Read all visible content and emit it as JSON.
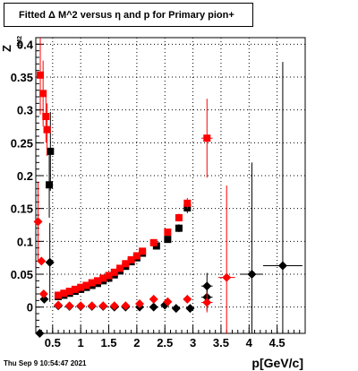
{
  "title": "Fitted Δ M^2 versus η and p for Primary pion+",
  "timestamp": "Thu Sep  9 10:54:47 2021",
  "chart_data": {
    "type": "scatter",
    "title": "Fitted Δ M^2 versus η and p for Primary pion+",
    "xlabel": "p[GeV/c]",
    "ylabel": "Z",
    "ylabel_sub": "dM2",
    "xlim": [
      0.2,
      5.0
    ],
    "ylim": [
      -0.04,
      0.41
    ],
    "grid": true,
    "x_ticks": [
      0.5,
      1,
      1.5,
      2,
      2.5,
      3,
      3.5,
      4,
      4.5
    ],
    "x_tick_labels": [
      "0.5",
      "1",
      "1.5",
      "2",
      "2.5",
      "3",
      "3.5",
      "4",
      "4.5"
    ],
    "y_ticks": [
      0,
      0.05,
      0.1,
      0.15,
      0.2,
      0.25,
      0.3,
      0.35,
      0.4
    ],
    "y_tick_labels": [
      "0",
      "0.05",
      "0.1",
      "0.15",
      "0.2",
      "0.25",
      "0.3",
      "0.35",
      "0.4"
    ],
    "colors": {
      "black": "#000000",
      "red": "#ff0000"
    },
    "series": [
      {
        "marker": "square",
        "color": "#000000",
        "points": [
          {
            "x": 0.46,
            "y": 0.237,
            "ey": 0.06
          },
          {
            "x": 0.44,
            "y": 0.186,
            "ey": 0.05
          },
          {
            "x": 0.6,
            "y": 0.016
          },
          {
            "x": 0.7,
            "y": 0.018
          },
          {
            "x": 0.8,
            "y": 0.021
          },
          {
            "x": 0.9,
            "y": 0.024
          },
          {
            "x": 1.0,
            "y": 0.027
          },
          {
            "x": 1.1,
            "y": 0.03
          },
          {
            "x": 1.2,
            "y": 0.033
          },
          {
            "x": 1.3,
            "y": 0.036
          },
          {
            "x": 1.4,
            "y": 0.04
          },
          {
            "x": 1.5,
            "y": 0.044
          },
          {
            "x": 1.6,
            "y": 0.049
          },
          {
            "x": 1.7,
            "y": 0.055
          },
          {
            "x": 1.8,
            "y": 0.062
          },
          {
            "x": 1.9,
            "y": 0.069
          },
          {
            "x": 2.0,
            "y": 0.075
          },
          {
            "x": 2.1,
            "y": 0.082
          },
          {
            "x": 2.35,
            "y": 0.093,
            "ex": 0.05,
            "ey": 0.004
          },
          {
            "x": 2.55,
            "y": 0.103,
            "ex": 0.05,
            "ey": 0.005
          },
          {
            "x": 2.75,
            "y": 0.12,
            "ex": 0.05,
            "ey": 0.006
          },
          {
            "x": 2.9,
            "y": 0.151,
            "ex": 0.05,
            "ey": 0.008
          }
        ]
      },
      {
        "marker": "square",
        "color": "#ff0000",
        "points": [
          {
            "x": 0.28,
            "y": 0.353,
            "ey": 0.06
          },
          {
            "x": 0.33,
            "y": 0.325,
            "ey": 0.05
          },
          {
            "x": 0.38,
            "y": 0.29,
            "ey": 0.04
          },
          {
            "x": 0.4,
            "y": 0.27,
            "ey": 0.04
          },
          {
            "x": 0.6,
            "y": 0.018
          },
          {
            "x": 0.7,
            "y": 0.021
          },
          {
            "x": 0.8,
            "y": 0.024
          },
          {
            "x": 0.9,
            "y": 0.027
          },
          {
            "x": 1.0,
            "y": 0.03
          },
          {
            "x": 1.1,
            "y": 0.033
          },
          {
            "x": 1.2,
            "y": 0.037
          },
          {
            "x": 1.3,
            "y": 0.04
          },
          {
            "x": 1.4,
            "y": 0.044
          },
          {
            "x": 1.5,
            "y": 0.048
          },
          {
            "x": 1.6,
            "y": 0.053
          },
          {
            "x": 1.7,
            "y": 0.059
          },
          {
            "x": 1.8,
            "y": 0.066
          },
          {
            "x": 1.9,
            "y": 0.072
          },
          {
            "x": 2.0,
            "y": 0.078
          },
          {
            "x": 2.1,
            "y": 0.085
          },
          {
            "x": 2.3,
            "y": 0.098,
            "ex": 0.05,
            "ey": 0.004
          },
          {
            "x": 2.55,
            "y": 0.114,
            "ex": 0.05,
            "ey": 0.005
          },
          {
            "x": 2.75,
            "y": 0.136,
            "ex": 0.05,
            "ey": 0.006
          },
          {
            "x": 2.9,
            "y": 0.158,
            "ex": 0.05,
            "ey": 0.008
          },
          {
            "x": 3.25,
            "y": 0.257,
            "ex": 0.1,
            "ey": 0.06
          }
        ]
      },
      {
        "marker": "diamond",
        "color": "#000000",
        "points": [
          {
            "x": 0.27,
            "y": -0.04
          },
          {
            "x": 0.35,
            "y": 0.012
          },
          {
            "x": 0.45,
            "y": 0.068,
            "ey": 0.06
          },
          {
            "x": 0.6,
            "y": 0.002
          },
          {
            "x": 0.8,
            "y": 0.001
          },
          {
            "x": 1.0,
            "y": 0.001
          },
          {
            "x": 1.2,
            "y": 0.001
          },
          {
            "x": 1.4,
            "y": 0.001
          },
          {
            "x": 1.6,
            "y": 0.0
          },
          {
            "x": 1.8,
            "y": 0.0
          },
          {
            "x": 2.05,
            "y": 0.0,
            "ex": 0.05
          },
          {
            "x": 2.3,
            "y": 0.0,
            "ex": 0.05
          },
          {
            "x": 2.5,
            "y": 0.003,
            "ex": 0.05
          },
          {
            "x": 2.7,
            "y": -0.002,
            "ex": 0.05
          },
          {
            "x": 2.95,
            "y": -0.002,
            "ex": 0.05
          },
          {
            "x": 3.25,
            "y": 0.032,
            "ex": 0.1,
            "ey": 0.02
          },
          {
            "x": 3.25,
            "y": 0.015,
            "ex": 0.1,
            "ey": 0.02
          },
          {
            "x": 4.05,
            "y": 0.05,
            "ex": 0.2,
            "ey": 0.17
          },
          {
            "x": 4.6,
            "y": 0.063,
            "ex": 0.35,
            "ey": 0.31
          }
        ]
      },
      {
        "marker": "diamond",
        "color": "#ff0000",
        "points": [
          {
            "x": 0.24,
            "y": 0.13,
            "ey": 0.06
          },
          {
            "x": 0.3,
            "y": 0.07
          },
          {
            "x": 0.34,
            "y": 0.02
          },
          {
            "x": 0.6,
            "y": 0.003
          },
          {
            "x": 0.8,
            "y": 0.002
          },
          {
            "x": 1.0,
            "y": 0.002
          },
          {
            "x": 1.2,
            "y": 0.002
          },
          {
            "x": 1.4,
            "y": 0.002
          },
          {
            "x": 1.6,
            "y": 0.002
          },
          {
            "x": 1.8,
            "y": 0.002
          },
          {
            "x": 2.05,
            "y": 0.005,
            "ex": 0.05
          },
          {
            "x": 2.3,
            "y": 0.012,
            "ex": 0.05
          },
          {
            "x": 2.55,
            "y": 0.008,
            "ex": 0.05
          },
          {
            "x": 2.9,
            "y": 0.012,
            "ex": 0.05
          },
          {
            "x": 3.25,
            "y": 0.007,
            "ex": 0.1,
            "ey": 0.015
          },
          {
            "x": 3.6,
            "y": 0.045,
            "ex": 0.15,
            "ey": 0.14
          }
        ]
      }
    ]
  }
}
